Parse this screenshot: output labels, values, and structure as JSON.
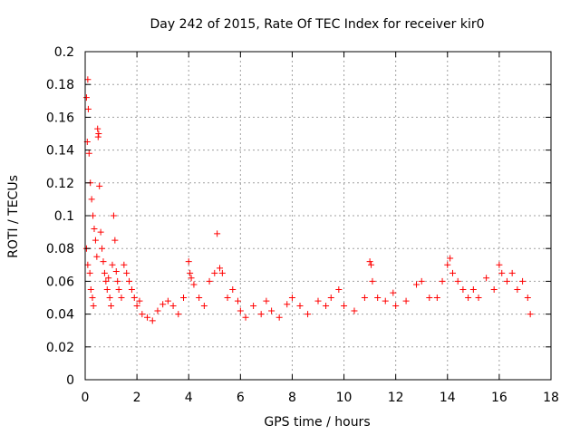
{
  "chart_data": {
    "type": "scatter",
    "title": "Day 242 of 2015, Rate Of TEC Index for receiver kir0",
    "xlabel": "GPS time / hours",
    "ylabel": "ROTI / TECUs",
    "xlim": [
      0,
      18
    ],
    "ylim": [
      0,
      0.2
    ],
    "x_ticks": [
      "0",
      "2",
      "4",
      "6",
      "8",
      "10",
      "12",
      "14",
      "16",
      "18"
    ],
    "y_ticks": [
      "0",
      "0.02",
      "0.04",
      "0.06",
      "0.08",
      "0.1",
      "0.12",
      "0.14",
      "0.16",
      "0.18",
      "0.2"
    ],
    "grid": true,
    "marker": "+",
    "series": [
      {
        "name": "ROTI",
        "color": "#ff0000",
        "points": [
          [
            0.05,
            0.172
          ],
          [
            0.1,
            0.183
          ],
          [
            0.12,
            0.165
          ],
          [
            0.08,
            0.145
          ],
          [
            0.15,
            0.138
          ],
          [
            0.2,
            0.12
          ],
          [
            0.25,
            0.11
          ],
          [
            0.3,
            0.1
          ],
          [
            0.35,
            0.092
          ],
          [
            0.05,
            0.08
          ],
          [
            0.1,
            0.07
          ],
          [
            0.18,
            0.065
          ],
          [
            0.22,
            0.055
          ],
          [
            0.28,
            0.05
          ],
          [
            0.32,
            0.045
          ],
          [
            0.4,
            0.085
          ],
          [
            0.45,
            0.075
          ],
          [
            0.48,
            0.153
          ],
          [
            0.5,
            0.148
          ],
          [
            0.52,
            0.15
          ],
          [
            0.55,
            0.118
          ],
          [
            0.6,
            0.09
          ],
          [
            0.65,
            0.08
          ],
          [
            0.7,
            0.072
          ],
          [
            0.75,
            0.065
          ],
          [
            0.8,
            0.06
          ],
          [
            0.85,
            0.055
          ],
          [
            0.9,
            0.062
          ],
          [
            0.95,
            0.05
          ],
          [
            1.0,
            0.045
          ],
          [
            1.05,
            0.07
          ],
          [
            1.1,
            0.1
          ],
          [
            1.15,
            0.085
          ],
          [
            1.2,
            0.066
          ],
          [
            1.25,
            0.06
          ],
          [
            1.3,
            0.055
          ],
          [
            1.4,
            0.05
          ],
          [
            1.5,
            0.07
          ],
          [
            1.6,
            0.065
          ],
          [
            1.7,
            0.06
          ],
          [
            1.8,
            0.055
          ],
          [
            1.9,
            0.05
          ],
          [
            2.0,
            0.045
          ],
          [
            2.1,
            0.048
          ],
          [
            2.2,
            0.04
          ],
          [
            2.4,
            0.038
          ],
          [
            2.6,
            0.036
          ],
          [
            2.8,
            0.042
          ],
          [
            3.0,
            0.046
          ],
          [
            3.2,
            0.048
          ],
          [
            3.4,
            0.045
          ],
          [
            3.6,
            0.04
          ],
          [
            3.8,
            0.05
          ],
          [
            4.0,
            0.072
          ],
          [
            4.05,
            0.065
          ],
          [
            4.1,
            0.062
          ],
          [
            4.2,
            0.058
          ],
          [
            4.4,
            0.05
          ],
          [
            4.6,
            0.045
          ],
          [
            4.8,
            0.06
          ],
          [
            5.0,
            0.065
          ],
          [
            5.1,
            0.089
          ],
          [
            5.2,
            0.068
          ],
          [
            5.3,
            0.065
          ],
          [
            5.5,
            0.05
          ],
          [
            5.7,
            0.055
          ],
          [
            5.9,
            0.048
          ],
          [
            6.0,
            0.042
          ],
          [
            6.2,
            0.038
          ],
          [
            6.5,
            0.045
          ],
          [
            6.8,
            0.04
          ],
          [
            7.0,
            0.048
          ],
          [
            7.2,
            0.042
          ],
          [
            7.5,
            0.038
          ],
          [
            7.8,
            0.046
          ],
          [
            8.0,
            0.05
          ],
          [
            8.3,
            0.045
          ],
          [
            8.6,
            0.04
          ],
          [
            9.0,
            0.048
          ],
          [
            9.3,
            0.045
          ],
          [
            9.5,
            0.05
          ],
          [
            9.8,
            0.055
          ],
          [
            10.0,
            0.045
          ],
          [
            10.4,
            0.042
          ],
          [
            10.8,
            0.05
          ],
          [
            11.0,
            0.072
          ],
          [
            11.05,
            0.07
          ],
          [
            11.1,
            0.06
          ],
          [
            11.3,
            0.05
          ],
          [
            11.6,
            0.048
          ],
          [
            11.9,
            0.053
          ],
          [
            12.0,
            0.045
          ],
          [
            12.4,
            0.048
          ],
          [
            12.8,
            0.058
          ],
          [
            13.0,
            0.06
          ],
          [
            13.3,
            0.05
          ],
          [
            13.6,
            0.05
          ],
          [
            13.8,
            0.06
          ],
          [
            14.0,
            0.07
          ],
          [
            14.1,
            0.074
          ],
          [
            14.2,
            0.065
          ],
          [
            14.4,
            0.06
          ],
          [
            14.6,
            0.055
          ],
          [
            14.8,
            0.05
          ],
          [
            15.0,
            0.055
          ],
          [
            15.2,
            0.05
          ],
          [
            15.5,
            0.062
          ],
          [
            15.8,
            0.055
          ],
          [
            16.0,
            0.07
          ],
          [
            16.1,
            0.065
          ],
          [
            16.3,
            0.06
          ],
          [
            16.5,
            0.065
          ],
          [
            16.7,
            0.055
          ],
          [
            16.9,
            0.06
          ],
          [
            17.1,
            0.05
          ],
          [
            17.2,
            0.04
          ]
        ]
      }
    ]
  }
}
